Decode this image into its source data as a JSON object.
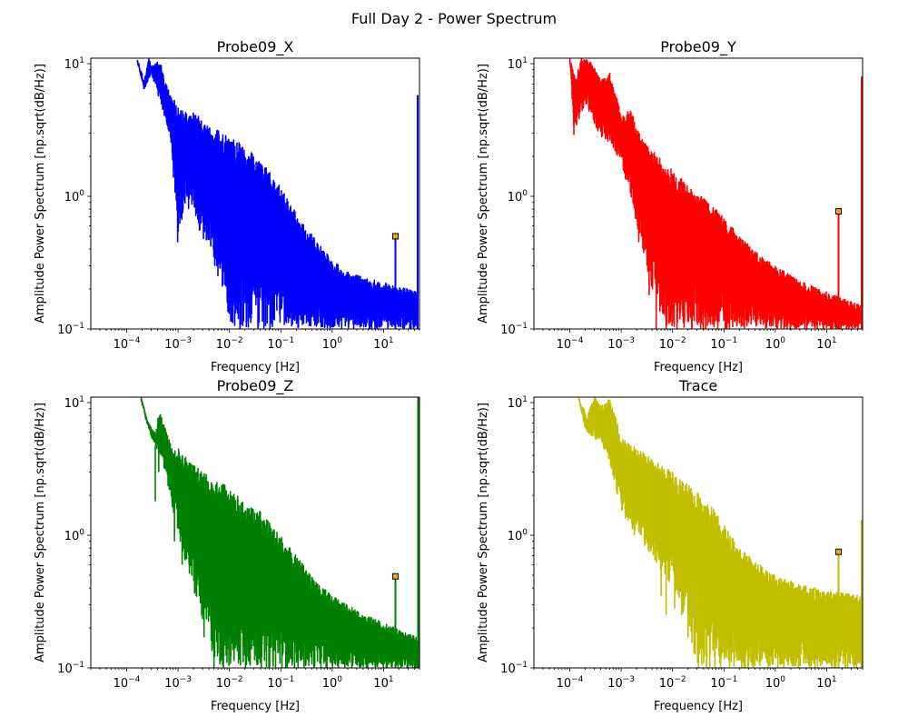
{
  "figure": {
    "suptitle": "Full Day 2 - Power Spectrum"
  },
  "chart_data": [
    {
      "type": "line",
      "title": "Probe09_X",
      "xlabel": "Frequency [Hz]",
      "ylabel": "Amplitude Power Spectrum [np.sqrt(dB/Hz)]",
      "xscale": "log",
      "yscale": "log",
      "xlim": [
        2e-05,
        50
      ],
      "ylim": [
        0.1,
        11
      ],
      "xticks": [
        {
          "value": 0.0001,
          "mant": "10",
          "exp": "−4"
        },
        {
          "value": 0.001,
          "mant": "10",
          "exp": "−3"
        },
        {
          "value": 0.01,
          "mant": "10",
          "exp": "−2"
        },
        {
          "value": 0.1,
          "mant": "10",
          "exp": "−1"
        },
        {
          "value": 1,
          "mant": "10",
          "exp": "0"
        },
        {
          "value": 10,
          "mant": "10",
          "exp": "1"
        }
      ],
      "yticks": [
        {
          "value": 0.1,
          "mant": "10",
          "exp": "−1"
        },
        {
          "value": 1,
          "mant": "10",
          "exp": "0"
        },
        {
          "value": 10,
          "mant": "10",
          "exp": "1"
        }
      ],
      "color": "#0000ff",
      "series": [
        {
          "envelope": [
            [
              0.00016,
              11
            ],
            [
              0.00022,
              7.5
            ],
            [
              0.00027,
              11
            ],
            [
              0.00032,
              10
            ],
            [
              0.00045,
              10.5
            ],
            [
              0.00055,
              7.5
            ],
            [
              0.0007,
              6.0
            ],
            [
              0.001,
              4.8
            ],
            [
              0.0015,
              4.2
            ],
            [
              0.002,
              4.3
            ],
            [
              0.003,
              3.8
            ],
            [
              0.005,
              3.3
            ],
            [
              0.007,
              3.0
            ],
            [
              0.01,
              2.8
            ],
            [
              0.02,
              2.4
            ],
            [
              0.04,
              1.9
            ],
            [
              0.07,
              1.5
            ],
            [
              0.1,
              1.15
            ],
            [
              0.2,
              0.75
            ],
            [
              0.3,
              0.6
            ],
            [
              0.5,
              0.46
            ],
            [
              1,
              0.33
            ],
            [
              2,
              0.27
            ],
            [
              5,
              0.24
            ],
            [
              15,
              0.215
            ],
            [
              30,
              0.2
            ],
            [
              46,
              0.19
            ]
          ],
          "floor": [
            [
              0.00016,
              10.5
            ],
            [
              0.00022,
              6.2
            ],
            [
              0.0003,
              8.5
            ],
            [
              0.0005,
              4.5
            ],
            [
              0.0007,
              2.8
            ],
            [
              0.001,
              0.45
            ],
            [
              0.0015,
              1.0
            ],
            [
              0.003,
              0.5
            ],
            [
              0.005,
              0.3
            ],
            [
              0.008,
              0.15
            ],
            [
              0.012,
              0.1
            ],
            [
              0.02,
              0.1
            ],
            [
              50,
              0.1
            ]
          ],
          "dips": [
            [
              0.00056,
              6.2
            ],
            [
              0.00098,
              0.45
            ],
            [
              0.0016,
              0.8
            ],
            [
              0.0026,
              0.55
            ],
            [
              0.0032,
              0.65
            ],
            [
              0.0045,
              0.7
            ],
            [
              0.006,
              0.4
            ],
            [
              0.0075,
              0.3
            ],
            [
              0.011,
              0.25
            ],
            [
              0.016,
              0.1
            ],
            [
              0.022,
              0.3
            ]
          ],
          "spike": {
            "x": 17,
            "y": 0.5
          },
          "edge": [
            46,
            5.8
          ]
        }
      ]
    },
    {
      "type": "line",
      "title": "Probe09_Y",
      "xlabel": "Frequency [Hz]",
      "ylabel": "Amplitude Power Spectrum [np.sqrt(dB/Hz)]",
      "xscale": "log",
      "yscale": "log",
      "xlim": [
        2e-05,
        50
      ],
      "ylim": [
        0.1,
        11
      ],
      "xticks": [
        {
          "value": 0.0001,
          "mant": "10",
          "exp": "−4"
        },
        {
          "value": 0.001,
          "mant": "10",
          "exp": "−3"
        },
        {
          "value": 0.01,
          "mant": "10",
          "exp": "−2"
        },
        {
          "value": 0.1,
          "mant": "10",
          "exp": "−1"
        },
        {
          "value": 1,
          "mant": "10",
          "exp": "0"
        },
        {
          "value": 10,
          "mant": "10",
          "exp": "1"
        }
      ],
      "yticks": [
        {
          "value": 0.1,
          "mant": "10",
          "exp": "−1"
        },
        {
          "value": 1,
          "mant": "10",
          "exp": "0"
        },
        {
          "value": 10,
          "mant": "10",
          "exp": "1"
        }
      ],
      "color": "#ff0000",
      "series": [
        {
          "envelope": [
            [
              0.0001,
              11
            ],
            [
              0.00013,
              8
            ],
            [
              0.00017,
              11
            ],
            [
              0.00025,
              10.5
            ],
            [
              0.0004,
              7.5
            ],
            [
              0.0006,
              8.5
            ],
            [
              0.001,
              4.2
            ],
            [
              0.0015,
              4.5
            ],
            [
              0.002,
              3.5
            ],
            [
              0.003,
              2.6
            ],
            [
              0.005,
              2.1
            ],
            [
              0.01,
              1.6
            ],
            [
              0.02,
              1.2
            ],
            [
              0.05,
              0.9
            ],
            [
              0.1,
              0.7
            ],
            [
              0.2,
              0.5
            ],
            [
              0.5,
              0.36
            ],
            [
              1,
              0.3
            ],
            [
              3,
              0.23
            ],
            [
              10,
              0.19
            ],
            [
              30,
              0.16
            ],
            [
              47,
              0.15
            ]
          ],
          "floor": [
            [
              0.0001,
              11
            ],
            [
              0.00012,
              3.0
            ],
            [
              0.0002,
              5.0
            ],
            [
              0.0004,
              2.8
            ],
            [
              0.0006,
              2.5
            ],
            [
              0.001,
              1.8
            ],
            [
              0.0015,
              1.0
            ],
            [
              0.002,
              0.6
            ],
            [
              0.003,
              0.3
            ],
            [
              0.005,
              0.15
            ],
            [
              0.008,
              0.1
            ],
            [
              50,
              0.1
            ]
          ],
          "dips": [
            [
              0.00012,
              2.9
            ],
            [
              0.0005,
              3.3
            ],
            [
              0.00068,
              2.5
            ],
            [
              0.0017,
              0.9
            ],
            [
              0.0022,
              0.45
            ],
            [
              0.0035,
              0.18
            ],
            [
              0.0048,
              0.1
            ],
            [
              0.0065,
              0.13
            ],
            [
              0.0075,
              0.1
            ],
            [
              0.0105,
              0.14
            ]
          ],
          "spike": {
            "x": 17,
            "y": 0.77
          },
          "edge": [
            48,
            8
          ]
        }
      ]
    },
    {
      "type": "line",
      "title": "Probe09_Z",
      "xlabel": "Frequency [Hz]",
      "ylabel": "Amplitude Power Spectrum [np.sqrt(dB/Hz)]",
      "xscale": "log",
      "yscale": "log",
      "xlim": [
        2e-05,
        50
      ],
      "ylim": [
        0.1,
        11
      ],
      "xticks": [
        {
          "value": 0.0001,
          "mant": "10",
          "exp": "−4"
        },
        {
          "value": 0.001,
          "mant": "10",
          "exp": "−3"
        },
        {
          "value": 0.01,
          "mant": "10",
          "exp": "−2"
        },
        {
          "value": 0.1,
          "mant": "10",
          "exp": "−1"
        },
        {
          "value": 1,
          "mant": "10",
          "exp": "0"
        },
        {
          "value": 10,
          "mant": "10",
          "exp": "1"
        }
      ],
      "yticks": [
        {
          "value": 0.1,
          "mant": "10",
          "exp": "−1"
        },
        {
          "value": 1,
          "mant": "10",
          "exp": "0"
        },
        {
          "value": 10,
          "mant": "10",
          "exp": "1"
        }
      ],
      "color": "#008000",
      "series": [
        {
          "envelope": [
            [
              0.00019,
              11
            ],
            [
              0.00025,
              7.5
            ],
            [
              0.0003,
              6.5
            ],
            [
              0.00037,
              5.8
            ],
            [
              0.0004,
              7.5
            ],
            [
              0.00045,
              8.5
            ],
            [
              0.0006,
              6.0
            ],
            [
              0.0008,
              4.3
            ],
            [
              0.001,
              4.5
            ],
            [
              0.002,
              3.4
            ],
            [
              0.004,
              2.8
            ],
            [
              0.007,
              2.6
            ],
            [
              0.01,
              2.2
            ],
            [
              0.02,
              1.8
            ],
            [
              0.04,
              1.5
            ],
            [
              0.1,
              1.0
            ],
            [
              0.2,
              0.7
            ],
            [
              0.5,
              0.45
            ],
            [
              1,
              0.35
            ],
            [
              3,
              0.27
            ],
            [
              10,
              0.22
            ],
            [
              30,
              0.18
            ],
            [
              46,
              0.17
            ]
          ],
          "floor": [
            [
              0.00019,
              11
            ],
            [
              0.0003,
              5.5
            ],
            [
              0.00045,
              4.0
            ],
            [
              0.0007,
              2.0
            ],
            [
              0.001,
              1.0
            ],
            [
              0.0016,
              0.5
            ],
            [
              0.0025,
              0.28
            ],
            [
              0.004,
              0.15
            ],
            [
              0.006,
              0.1
            ],
            [
              50,
              0.1
            ]
          ],
          "dips": [
            [
              0.00036,
              1.8
            ],
            [
              0.00042,
              3.0
            ],
            [
              0.00085,
              0.9
            ],
            [
              0.0012,
              0.6
            ],
            [
              0.0018,
              0.8
            ],
            [
              0.0032,
              0.17
            ],
            [
              0.005,
              0.1
            ],
            [
              0.007,
              0.12
            ]
          ],
          "spike": {
            "x": 17,
            "y": 0.49
          },
          "edge": [
            47,
            11
          ]
        }
      ]
    },
    {
      "type": "line",
      "title": "Trace",
      "xlabel": "Frequency [Hz]",
      "ylabel": "Amplitude Power Spectrum [np.sqrt(dB/Hz)]",
      "xscale": "log",
      "yscale": "log",
      "xlim": [
        2e-05,
        50
      ],
      "ylim": [
        0.1,
        11
      ],
      "xticks": [
        {
          "value": 0.0001,
          "mant": "10",
          "exp": "−4"
        },
        {
          "value": 0.001,
          "mant": "10",
          "exp": "−3"
        },
        {
          "value": 0.01,
          "mant": "10",
          "exp": "−2"
        },
        {
          "value": 0.1,
          "mant": "10",
          "exp": "−1"
        },
        {
          "value": 1,
          "mant": "10",
          "exp": "0"
        },
        {
          "value": 10,
          "mant": "10",
          "exp": "1"
        }
      ],
      "yticks": [
        {
          "value": 0.1,
          "mant": "10",
          "exp": "−1"
        },
        {
          "value": 1,
          "mant": "10",
          "exp": "0"
        },
        {
          "value": 10,
          "mant": "10",
          "exp": "1"
        }
      ],
      "color": "#bfbf00",
      "series": [
        {
          "envelope": [
            [
              0.00015,
              11
            ],
            [
              0.00022,
              8.0
            ],
            [
              0.0003,
              11
            ],
            [
              0.0004,
              9.5
            ],
            [
              0.0006,
              11
            ],
            [
              0.0008,
              7.5
            ],
            [
              0.001,
              5.5
            ],
            [
              0.0015,
              5.0
            ],
            [
              0.002,
              4.5
            ],
            [
              0.004,
              3.8
            ],
            [
              0.007,
              3.3
            ],
            [
              0.01,
              3.0
            ],
            [
              0.02,
              2.4
            ],
            [
              0.05,
              1.8
            ],
            [
              0.1,
              1.2
            ],
            [
              0.2,
              0.8
            ],
            [
              0.5,
              0.6
            ],
            [
              1,
              0.5
            ],
            [
              3,
              0.43
            ],
            [
              10,
              0.38
            ],
            [
              30,
              0.36
            ],
            [
              47,
              0.35
            ]
          ],
          "floor": [
            [
              0.00015,
              11
            ],
            [
              0.0002,
              6.0
            ],
            [
              0.0004,
              5.0
            ],
            [
              0.0006,
              3.5
            ],
            [
              0.001,
              1.5
            ],
            [
              0.002,
              1.0
            ],
            [
              0.004,
              0.7
            ],
            [
              0.008,
              0.45
            ],
            [
              0.012,
              0.35
            ],
            [
              0.02,
              0.2
            ],
            [
              0.03,
              0.1
            ],
            [
              50,
              0.1
            ]
          ],
          "dips": [
            [
              0.00045,
              4.7
            ],
            [
              0.0007,
              4.0
            ],
            [
              0.0009,
              2.8
            ],
            [
              0.0018,
              1.0
            ],
            [
              0.0035,
              0.75
            ],
            [
              0.006,
              0.35
            ],
            [
              0.0075,
              0.25
            ],
            [
              0.011,
              0.28
            ],
            [
              0.015,
              0.25
            ],
            [
              0.02,
              0.17
            ],
            [
              0.032,
              0.1
            ]
          ],
          "spike": {
            "x": 17,
            "y": 0.75
          },
          "edge": [
            48,
            1.3
          ]
        }
      ]
    }
  ]
}
